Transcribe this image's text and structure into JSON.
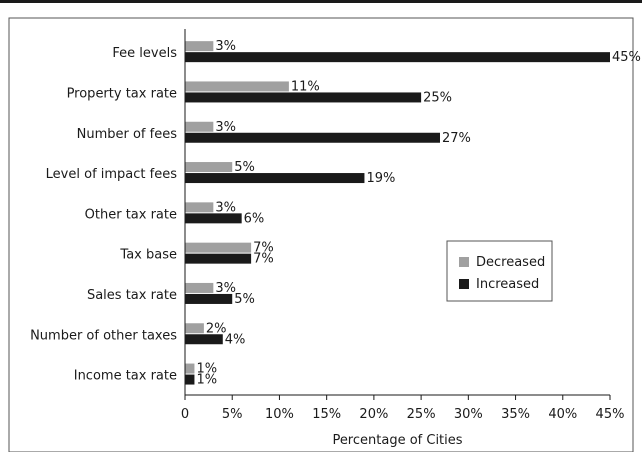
{
  "chart_data": {
    "type": "bar",
    "orientation": "horizontal",
    "categories": [
      "Fee levels",
      "Property tax rate",
      "Number of fees",
      "Level of impact fees",
      "Other tax rate",
      "Tax base",
      "Sales tax rate",
      "Number of other taxes",
      "Income tax rate"
    ],
    "series": [
      {
        "name": "Decreased",
        "color": "#a0a0a0",
        "values": [
          3,
          11,
          3,
          5,
          3,
          7,
          3,
          2,
          1
        ]
      },
      {
        "name": "Increased",
        "color": "#1a1a1a",
        "values": [
          45,
          25,
          27,
          19,
          6,
          7,
          5,
          4,
          1
        ]
      }
    ],
    "value_suffix": "%",
    "xlim": [
      0,
      45
    ],
    "xticks": [
      "0",
      "5%",
      "10%",
      "15%",
      "20%",
      "25%",
      "30%",
      "35%",
      "40%",
      "45%"
    ],
    "xlabel": "Percentage of Cities",
    "grid": false,
    "legend_position": "right"
  }
}
